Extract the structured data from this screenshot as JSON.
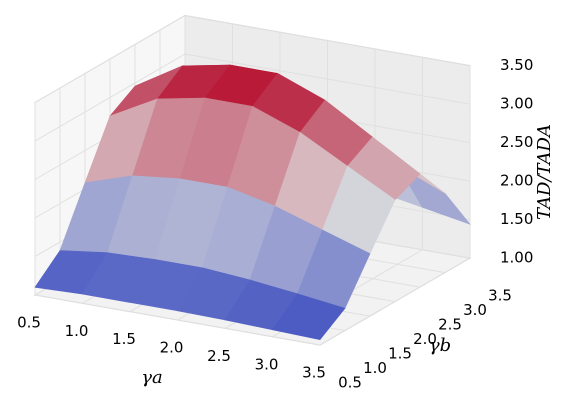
{
  "chart_data": {
    "type": "surface",
    "xlabel": "γa",
    "ylabel": "γb",
    "zlabel": "TAD/TADA",
    "x": [
      0.5,
      1,
      1.5,
      2,
      2.5,
      3,
      3.5
    ],
    "y": [
      0.5,
      1,
      1.5,
      2,
      2.5,
      3,
      3.5
    ],
    "z": [
      [
        1.1,
        1.39,
        2.08,
        2.76,
        2.96,
        2.37,
        1.59
      ],
      [
        1.12,
        1.47,
        2.28,
        3.09,
        3.33,
        2.63,
        1.7
      ],
      [
        1.12,
        1.49,
        2.35,
        3.21,
        3.45,
        2.72,
        1.74
      ],
      [
        1.12,
        1.49,
        2.35,
        3.21,
        3.45,
        2.72,
        1.74
      ],
      [
        1.11,
        1.44,
        2.21,
        2.98,
        3.21,
        2.54,
        1.66
      ],
      [
        1.09,
        1.37,
        2.01,
        2.65,
        2.84,
        2.29,
        1.55
      ],
      [
        1.07,
        1.29,
        1.81,
        2.32,
        2.47,
        2.03,
        1.44
      ]
    ],
    "colormap": [
      "#3b4cc0",
      "#dddddd",
      "#b40426"
    ],
    "xlim": [
      0.5,
      3.5
    ],
    "ylim": [
      0.5,
      3.5
    ],
    "zlim": [
      1,
      3.5
    ],
    "xticks": [
      0.5,
      {
        "value": 1,
        "label": "1.0"
      },
      1.5,
      {
        "value": 2,
        "label": "2.0"
      },
      2.5,
      {
        "value": 3,
        "label": "3.0"
      },
      3.5
    ],
    "yticks": [
      0.5,
      {
        "value": 1,
        "label": "1.0"
      },
      1.5,
      {
        "value": 2,
        "label": "2.0"
      },
      2.5,
      {
        "value": 3,
        "label": "3.0"
      },
      3.5
    ],
    "zticks": [
      {
        "value": 1,
        "label": "1.00"
      },
      {
        "value": 1.5,
        "label": "1.50"
      },
      {
        "value": 2,
        "label": "2.00"
      },
      {
        "value": 2.5,
        "label": "2.50"
      },
      {
        "value": 3,
        "label": "3.00"
      },
      {
        "value": 3.5,
        "label": "3.50"
      }
    ],
    "grid": true
  }
}
